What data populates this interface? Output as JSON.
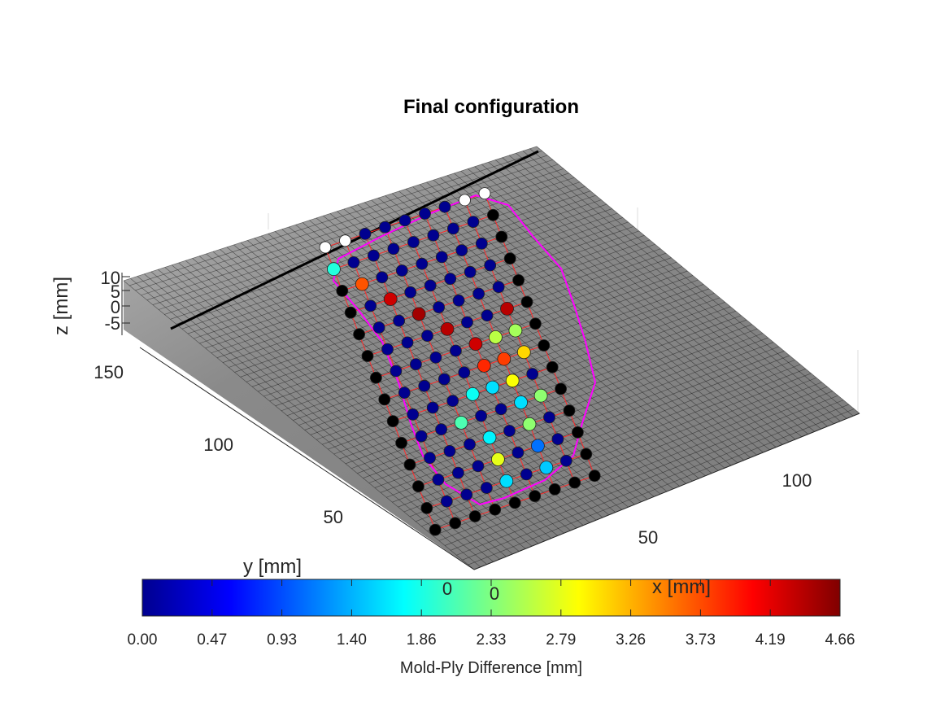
{
  "chart_data": {
    "type": "surface-scatter-3d",
    "title": "Final configuration",
    "xlabel": "x [mm]",
    "ylabel": "y [mm]",
    "zlabel": "z [mm]",
    "xticks": [
      "50",
      "100"
    ],
    "yticks": [
      "50",
      "100",
      "150"
    ],
    "zticks": [
      "10",
      "5",
      "0",
      "-5"
    ],
    "xlim": [
      0,
      130
    ],
    "ylim": [
      0,
      170
    ],
    "zlim": [
      -8,
      12
    ],
    "stray_labels": [
      "0",
      "0"
    ],
    "colorbar": {
      "label": "Mold-Ply Difference [mm]",
      "colormap": "jet",
      "range": [
        0,
        4.66
      ],
      "ticks": [
        "0.00",
        "0.47",
        "0.93",
        "1.40",
        "1.86",
        "2.33",
        "2.79",
        "3.26",
        "3.73",
        "4.19",
        "4.66"
      ]
    },
    "series": [
      {
        "name": "mold surface",
        "kind": "surface",
        "color": "#9a9a9a"
      },
      {
        "name": "ply nodes",
        "kind": "scatter",
        "colored_by": "Mold-Ply Difference [mm]",
        "highlighted_values": [
          1.9,
          3.7,
          4.3,
          4.5,
          4.4,
          4.3,
          3.9,
          2.9,
          1.6,
          2.4,
          4.4,
          2.5,
          3.8,
          3.1,
          1.6,
          1.8,
          2.1,
          1.7,
          2.8,
          1.6,
          1.1,
          1.5,
          2.6,
          2.4
        ]
      },
      {
        "name": "fiber mesh",
        "kind": "line",
        "color": "#ff2020"
      },
      {
        "name": "ply boundary",
        "kind": "line",
        "color": "#ff00ff"
      }
    ]
  },
  "colors": {
    "surface_line": "#101010",
    "mesh": "#ff2a2a",
    "boundary": "#ff00ff",
    "node_default": "#00008f"
  }
}
